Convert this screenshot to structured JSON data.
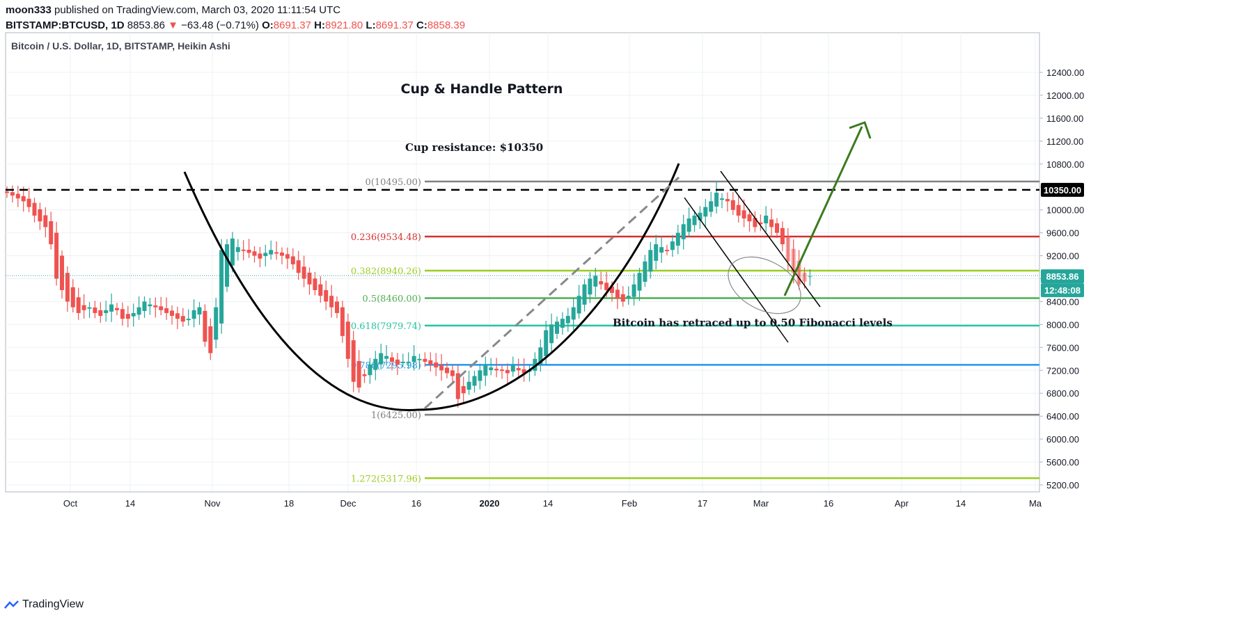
{
  "header": {
    "publisher": "moon333",
    "published_text": "published on TradingView.com, March 03, 2020 11:11:54 UTC",
    "symbol": "BITSTAMP:BTCUSD, 1D",
    "last": "8853.86",
    "change": "−63.48 (−0.71%)",
    "o_label": "O:",
    "o": "8691.37",
    "h_label": "H:",
    "h": "8921.80",
    "l_label": "L:",
    "l": "8691.37",
    "c_label": "C:",
    "c": "8858.39"
  },
  "footer": {
    "brand": "TradingView"
  },
  "colors": {
    "up": "#26a69a",
    "down": "#ef5350",
    "fib0": "#808080",
    "fib236": "#d32f2f",
    "fib382": "#9ccc20",
    "fib5": "#4caf50",
    "fib618": "#26c6a0",
    "fib786": "#2196f3",
    "fib1272": "#9ccc20",
    "arrow": "#3b7a1e"
  },
  "chart_data": {
    "type": "candlestick",
    "title": "Bitcoin / U.S. Dollar, 1D, BITSTAMP, Heikin Ashi",
    "annotation_title": "Cup & Handle Pattern",
    "x_ticks": [
      "Oct",
      "14",
      "Nov",
      "18",
      "Dec",
      "16",
      "2020",
      "14",
      "Feb",
      "17",
      "Mar",
      "16",
      "Apr",
      "14",
      "Ma"
    ],
    "y_ticks": [
      12400,
      12000,
      11600,
      11200,
      10800,
      10400,
      10000,
      9600,
      9200,
      8800,
      8400,
      8000,
      7600,
      7200,
      6800,
      6400,
      6000,
      5600,
      5200
    ],
    "y_tick_labels": [
      "12400.00",
      "12000.00",
      "11600.00",
      "11200.00",
      "10800.00",
      "10400.00",
      "10000.00",
      "9600.00",
      "9200.00",
      "8800.00",
      "8400.00",
      "8000.00",
      "7600.00",
      "7200.00",
      "6800.00",
      "6400.00",
      "6000.00",
      "5600.00",
      "5200.00"
    ],
    "ylim": [
      5000,
      12700
    ],
    "fib_levels": [
      {
        "label": "0(10495.00)",
        "value": 10495.0,
        "key": "fib0"
      },
      {
        "label": "0.236(9534.48)",
        "value": 9534.48,
        "key": "fib236"
      },
      {
        "label": "0.382(8940.26)",
        "value": 8940.26,
        "key": "fib382"
      },
      {
        "label": "0.5(8460.00)",
        "value": 8460.0,
        "key": "fib5"
      },
      {
        "label": "0.618(7979.74)",
        "value": 7979.74,
        "key": "fib618"
      },
      {
        "label": "0.786(7295.98)",
        "value": 7295.98,
        "key": "fib786"
      },
      {
        "label": "1(6425.00)",
        "value": 6425.0,
        "key": "fib0"
      },
      {
        "label": "1.272(5317.96)",
        "value": 5317.96,
        "key": "fib1272"
      }
    ],
    "resistance": {
      "label": "Cup resistance: $10350",
      "value": 10350,
      "axis_label": "10350.00"
    },
    "price_label": "8853.86",
    "countdown_label": "12:48:08",
    "note": "Bitcoin has retraced up to 0.50 Fibonacci levels",
    "closes": [
      10300,
      10250,
      10200,
      10150,
      10050,
      9900,
      9800,
      9700,
      9400,
      8800,
      8600,
      8400,
      8300,
      8200,
      8250,
      8300,
      8200,
      8150,
      8250,
      8350,
      8250,
      8100,
      8100,
      8200,
      8300,
      8400,
      8350,
      8300,
      8250,
      8200,
      8150,
      8100,
      8050,
      8100,
      8250,
      8300,
      7700,
      7500,
      8300,
      9300,
      9400,
      9500,
      9350,
      9300,
      9250,
      9200,
      9150,
      9250,
      9300,
      9250,
      9200,
      9150,
      9050,
      8900,
      8800,
      8700,
      8600,
      8500,
      8400,
      8300,
      8200,
      7800,
      7400,
      7000,
      6900,
      7100,
      7300,
      7400,
      7500,
      7450,
      7350,
      7300,
      7350,
      7350,
      7450,
      7400,
      7350,
      7300,
      7250,
      7200,
      7150,
      7100,
      6700,
      6800,
      7000,
      7100,
      7200,
      7300,
      7250,
      7200,
      7200,
      7150,
      7300,
      7200,
      7150,
      7200,
      7400,
      7600,
      7900,
      8000,
      8050,
      8100,
      8150,
      8300,
      8500,
      8700,
      8800,
      8850,
      8700,
      8600,
      8550,
      8450,
      8400,
      8500,
      8700,
      8900,
      9100,
      9300,
      9400,
      9350,
      9300,
      9450,
      9600,
      9750,
      9850,
      9900,
      9950,
      10050,
      10150,
      10300,
      10200,
      10150,
      10000,
      9900,
      9850,
      9800,
      9700,
      9750,
      9900,
      9700,
      9600,
      9400,
      9100,
      8900,
      8700,
      8750,
      8850
    ]
  }
}
